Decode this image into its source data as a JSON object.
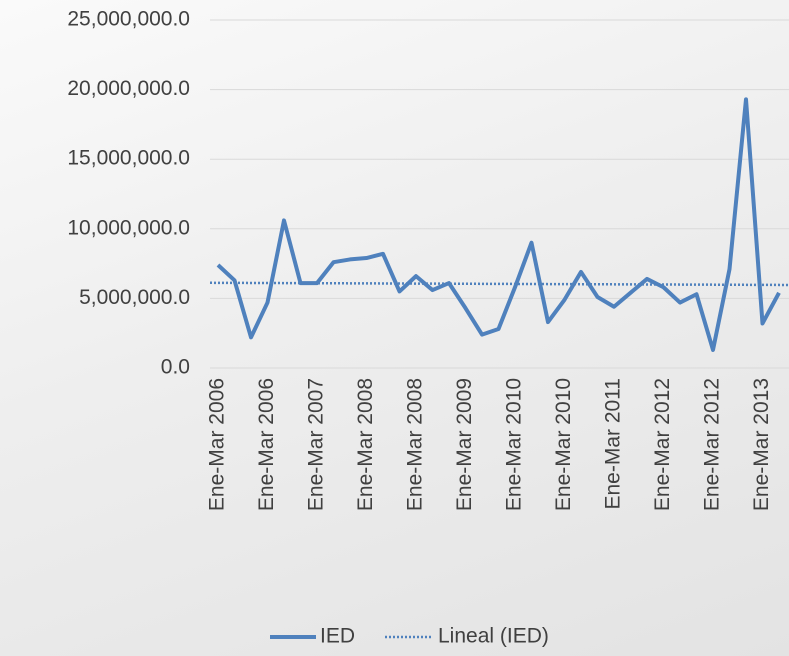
{
  "chart_data": {
    "type": "line",
    "categories": [
      "Ene-Mar 2006",
      null,
      null,
      "Ene-Mar 2006",
      null,
      null,
      "Ene-Mar 2007",
      null,
      null,
      "Ene-Mar 2008",
      null,
      null,
      "Ene-Mar 2008",
      null,
      null,
      "Ene-Mar 2009",
      null,
      null,
      "Ene-Mar 2010",
      null,
      null,
      "Ene-Mar 2010",
      null,
      null,
      "Ene-Mar 2011",
      null,
      null,
      "Ene-Mar 2012",
      null,
      null,
      "Ene-Mar 2012",
      null,
      null,
      "Ene-Mar 2013",
      null
    ],
    "series": [
      {
        "name": "IED",
        "color": "#4f81bd",
        "values": [
          7400000,
          6300000,
          2200000,
          4700000,
          10600000,
          6100000,
          6100000,
          7600000,
          7800000,
          7900000,
          8200000,
          5500000,
          6600000,
          5600000,
          6100000,
          4300000,
          2400000,
          2800000,
          5800000,
          9000000,
          3300000,
          4900000,
          6900000,
          5100000,
          4400000,
          5400000,
          6400000,
          5800000,
          4700000,
          5300000,
          1300000,
          7100000,
          19300000,
          3200000,
          5400000
        ]
      }
    ],
    "trendline": {
      "name": "Lineal (IED)",
      "type": "linear",
      "color": "#4f81bd",
      "style": "dotted"
    },
    "ylim": [
      0,
      25000000
    ],
    "yticks": [
      {
        "value": 0,
        "label": "0.0"
      },
      {
        "value": 5000000,
        "label": "5,000,000.0"
      },
      {
        "value": 10000000,
        "label": "10,000,000.0"
      },
      {
        "value": 15000000,
        "label": "15,000,000.0"
      },
      {
        "value": 20000000,
        "label": "20,000,000.0"
      },
      {
        "value": 25000000,
        "label": "25,000,000.0"
      }
    ],
    "grid": true,
    "legend": "bottom"
  }
}
